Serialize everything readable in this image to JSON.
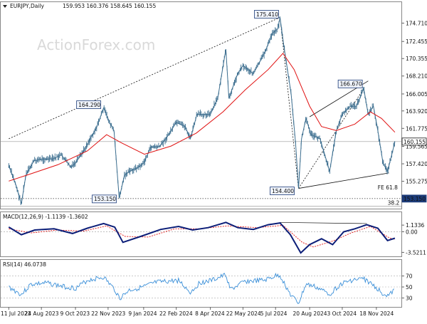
{
  "header": {
    "symbol": "EURJPY,Daily",
    "ohlc": "159.953 160.376 158.645 160.155"
  },
  "watermark": "ActionForex.com",
  "colors": {
    "price": "#3c6e8f",
    "ma": "#e01010",
    "macd": "#0c1e78",
    "signal": "#e01010",
    "rsi": "#3a8fd8",
    "grid": "#9a9a9a",
    "label_bg": "#1c3b78"
  },
  "chart_data": [
    {
      "type": "line",
      "panel": "price",
      "ylim": [
        152.0,
        177.2
      ],
      "yticks": [
        {
          "v": 174.71,
          "label": "174.710"
        },
        {
          "v": 172.455,
          "label": "172.455"
        },
        {
          "v": 170.355,
          "label": "170.355"
        },
        {
          "v": 168.21,
          "label": "168.210"
        },
        {
          "v": 166.005,
          "label": "166.005"
        },
        {
          "v": 163.92,
          "label": "163.920"
        },
        {
          "v": 161.775,
          "label": "161.775"
        },
        {
          "v": 159.565,
          "label": "159.565"
        },
        {
          "v": 157.42,
          "label": "157.420"
        },
        {
          "v": 155.275,
          "label": "155.275"
        }
      ],
      "last_price": {
        "v": 160.155,
        "label": "160.155"
      },
      "level_label": {
        "v": 153.15,
        "label": "153.150"
      },
      "dates": [
        "11 Jul 2023",
        "24 Aug 2023",
        "9 Oct 2023",
        "22 Nov 2023",
        "9 Jan 2024",
        "22 Feb 2024",
        "8 Apr 2024",
        "22 May 2024",
        "5 Jul 2024",
        "20 Aug 2024",
        "3 Oct 2024",
        "18 Nov 2024"
      ],
      "series": [
        {
          "role": "price",
          "points": [
            [
              "2023-07-11",
              157.2
            ],
            [
              "2023-07-20",
              155.0
            ],
            [
              "2023-07-28",
              152.5
            ],
            [
              "2023-08-03",
              156.0
            ],
            [
              "2023-08-14",
              157.8
            ],
            [
              "2023-08-24",
              158.0
            ],
            [
              "2023-09-08",
              158.0
            ],
            [
              "2023-09-20",
              158.5
            ],
            [
              "2023-10-03",
              157.0
            ],
            [
              "2023-10-09",
              157.5
            ],
            [
              "2023-10-20",
              159.0
            ],
            [
              "2023-11-01",
              161.0
            ],
            [
              "2023-11-07",
              162.0
            ],
            [
              "2023-11-16",
              164.29
            ],
            [
              "2023-11-24",
              162.5
            ],
            [
              "2023-11-30",
              161.5
            ],
            [
              "2023-12-07",
              153.16
            ],
            [
              "2023-12-14",
              156.0
            ],
            [
              "2023-12-21",
              156.5
            ],
            [
              "2024-01-02",
              157.0
            ],
            [
              "2024-01-09",
              157.5
            ],
            [
              "2024-01-19",
              159.5
            ],
            [
              "2024-01-30",
              159.5
            ],
            [
              "2024-02-08",
              160.5
            ],
            [
              "2024-02-22",
              162.5
            ],
            [
              "2024-03-05",
              162.0
            ],
            [
              "2024-03-12",
              160.5
            ],
            [
              "2024-03-21",
              163.5
            ],
            [
              "2024-04-08",
              163.5
            ],
            [
              "2024-04-18",
              165.5
            ],
            [
              "2024-04-29",
              171.5
            ],
            [
              "2024-05-03",
              165.5
            ],
            [
              "2024-05-15",
              168.5
            ],
            [
              "2024-05-22",
              169.5
            ],
            [
              "2024-06-05",
              168.5
            ],
            [
              "2024-06-20",
              171.0
            ],
            [
              "2024-07-01",
              173.5
            ],
            [
              "2024-07-08",
              174.0
            ],
            [
              "2024-07-11",
              175.41
            ],
            [
              "2024-07-16",
              172.0
            ],
            [
              "2024-07-26",
              166.0
            ],
            [
              "2024-08-01",
              160.0
            ],
            [
              "2024-08-05",
              154.4
            ],
            [
              "2024-08-09",
              160.5
            ],
            [
              "2024-08-15",
              163.0
            ],
            [
              "2024-08-22",
              161.0
            ],
            [
              "2024-09-03",
              160.5
            ],
            [
              "2024-09-16",
              156.5
            ],
            [
              "2024-09-25",
              161.5
            ],
            [
              "2024-10-03",
              163.5
            ],
            [
              "2024-10-14",
              164.5
            ],
            [
              "2024-10-22",
              164.5
            ],
            [
              "2024-11-01",
              166.67
            ],
            [
              "2024-11-07",
              163.5
            ],
            [
              "2024-11-14",
              164.5
            ],
            [
              "2024-11-20",
              161.5
            ],
            [
              "2024-11-27",
              157.5
            ],
            [
              "2024-12-03",
              156.5
            ],
            [
              "2024-12-10",
              159.0
            ],
            [
              "2024-12-13",
              160.155
            ]
          ]
        },
        {
          "role": "moving_average",
          "points": [
            [
              "2023-07-11",
              155.3
            ],
            [
              "2023-08-10",
              156.2
            ],
            [
              "2023-09-15",
              157.3
            ],
            [
              "2023-10-25",
              159.0
            ],
            [
              "2023-11-20",
              161.0
            ],
            [
              "2023-12-10",
              160.0
            ],
            [
              "2024-01-10",
              158.6
            ],
            [
              "2024-02-15",
              159.6
            ],
            [
              "2024-03-20",
              161.2
            ],
            [
              "2024-04-25",
              163.8
            ],
            [
              "2024-05-25",
              166.5
            ],
            [
              "2024-06-25",
              169.0
            ],
            [
              "2024-07-15",
              171.0
            ],
            [
              "2024-07-30",
              169.0
            ],
            [
              "2024-08-20",
              164.5
            ],
            [
              "2024-09-05",
              162.0
            ],
            [
              "2024-09-25",
              161.5
            ],
            [
              "2024-10-20",
              162.3
            ],
            [
              "2024-11-10",
              163.8
            ],
            [
              "2024-11-25",
              163.0
            ],
            [
              "2024-12-13",
              161.3
            ]
          ]
        }
      ],
      "annotations": [
        {
          "label": "175.410",
          "date": "2024-07-11",
          "v": 175.41
        },
        {
          "label": "164.290",
          "date": "2023-11-16",
          "v": 164.29
        },
        {
          "label": "166.670",
          "date": "2024-11-01",
          "v": 166.67
        },
        {
          "label": "154.400",
          "date": "2024-08-05",
          "v": 154.4
        },
        {
          "label": "153.150",
          "date": "2023-12-07",
          "v": 153.15
        },
        {
          "label": "FE 61.8",
          "v": 154.1
        },
        {
          "label": "38.2",
          "v": 152.2
        }
      ],
      "trendlines": [
        {
          "from": [
            "2023-07-11",
            160.5
          ],
          "to": [
            "2024-07-11",
            175.41
          ]
        },
        {
          "from": [
            "2024-07-11",
            175.41
          ],
          "to": [
            "2024-08-05",
            154.4
          ]
        },
        {
          "from": [
            "2024-08-05",
            154.4
          ],
          "to": [
            "2024-11-01",
            166.67
          ]
        },
        {
          "from": [
            "2024-08-05",
            154.4
          ],
          "to": [
            "2024-12-05",
            156.3
          ]
        },
        {
          "from": [
            "2024-08-20",
            163.2
          ],
          "to": [
            "2024-11-07",
            167.6
          ]
        }
      ],
      "hlines": [
        {
          "v": 160.155,
          "style": "solid"
        },
        {
          "v": 153.15,
          "style": "dotted"
        },
        {
          "v": 152.2,
          "style": "solid"
        }
      ]
    },
    {
      "type": "line",
      "panel": "macd",
      "label": "MACD(12,26,9) -1.1139 -1.3602",
      "ylim": [
        -4.2,
        2.0
      ],
      "yticks": [
        {
          "v": 1.1336,
          "label": "1.1336"
        },
        {
          "v": 0.0,
          "label": "0.00"
        },
        {
          "v": -3.5211,
          "label": "-3.5211"
        }
      ],
      "series": [
        {
          "role": "macd",
          "points": [
            [
              "2023-07-11",
              0.8
            ],
            [
              "2023-07-28",
              -0.5
            ],
            [
              "2023-08-15",
              0.3
            ],
            [
              "2023-09-10",
              0.5
            ],
            [
              "2023-10-05",
              -0.3
            ],
            [
              "2023-10-25",
              0.6
            ],
            [
              "2023-11-16",
              1.4
            ],
            [
              "2023-12-01",
              0.8
            ],
            [
              "2023-12-12",
              -1.8
            ],
            [
              "2024-01-05",
              -0.8
            ],
            [
              "2024-02-01",
              0.4
            ],
            [
              "2024-02-25",
              0.9
            ],
            [
              "2024-03-15",
              0.3
            ],
            [
              "2024-04-05",
              0.7
            ],
            [
              "2024-04-29",
              1.6
            ],
            [
              "2024-05-15",
              0.7
            ],
            [
              "2024-06-05",
              0.4
            ],
            [
              "2024-06-25",
              1.2
            ],
            [
              "2024-07-11",
              1.5
            ],
            [
              "2024-07-25",
              -0.5
            ],
            [
              "2024-08-08",
              -3.6
            ],
            [
              "2024-08-20",
              -2.2
            ],
            [
              "2024-09-05",
              -1.2
            ],
            [
              "2024-09-20",
              -2.2
            ],
            [
              "2024-10-05",
              0.0
            ],
            [
              "2024-10-20",
              0.5
            ],
            [
              "2024-11-05",
              1.2
            ],
            [
              "2024-11-20",
              0.6
            ],
            [
              "2024-12-03",
              -1.5
            ],
            [
              "2024-12-13",
              -1.1
            ]
          ]
        },
        {
          "role": "signal",
          "points": [
            [
              "2023-07-11",
              0.5
            ],
            [
              "2023-08-10",
              -0.2
            ],
            [
              "2023-09-15",
              0.3
            ],
            [
              "2023-10-20",
              0.1
            ],
            [
              "2023-11-20",
              1.0
            ],
            [
              "2023-12-15",
              -0.8
            ],
            [
              "2024-01-15",
              -0.9
            ],
            [
              "2024-02-20",
              0.5
            ],
            [
              "2024-03-25",
              0.5
            ],
            [
              "2024-05-01",
              1.0
            ],
            [
              "2024-06-10",
              0.7
            ],
            [
              "2024-07-15",
              1.1
            ],
            [
              "2024-08-10",
              -1.8
            ],
            [
              "2024-08-25",
              -2.6
            ],
            [
              "2024-09-20",
              -1.6
            ],
            [
              "2024-10-15",
              -0.2
            ],
            [
              "2024-11-10",
              0.9
            ],
            [
              "2024-12-05",
              -1.0
            ],
            [
              "2024-12-13",
              -1.36
            ]
          ]
        }
      ],
      "trendlines": [
        {
          "from": [
            "2024-07-11",
            1.6
          ],
          "to": [
            "2024-11-05",
            1.4
          ]
        }
      ]
    },
    {
      "type": "line",
      "panel": "rsi",
      "label": "RSI(14) 46.0738",
      "ylim": [
        15,
        85
      ],
      "yticks": [
        {
          "v": 70,
          "label": "70"
        },
        {
          "v": 50,
          "label": "50"
        },
        {
          "v": 30,
          "label": "30"
        }
      ],
      "series": [
        {
          "role": "rsi",
          "points": [
            [
              "2023-07-11",
              50
            ],
            [
              "2023-07-28",
              36
            ],
            [
              "2023-08-10",
              55
            ],
            [
              "2023-09-01",
              57
            ],
            [
              "2023-09-25",
              50
            ],
            [
              "2023-10-10",
              48
            ],
            [
              "2023-10-25",
              62
            ],
            [
              "2023-11-16",
              68
            ],
            [
              "2023-12-01",
              45
            ],
            [
              "2023-12-08",
              29
            ],
            [
              "2023-12-20",
              44
            ],
            [
              "2024-01-09",
              50
            ],
            [
              "2024-01-25",
              58
            ],
            [
              "2024-02-10",
              60
            ],
            [
              "2024-02-25",
              62
            ],
            [
              "2024-03-12",
              40
            ],
            [
              "2024-03-25",
              58
            ],
            [
              "2024-04-10",
              62
            ],
            [
              "2024-04-29",
              72
            ],
            [
              "2024-05-05",
              45
            ],
            [
              "2024-05-25",
              60
            ],
            [
              "2024-06-20",
              62
            ],
            [
              "2024-07-05",
              70
            ],
            [
              "2024-07-11",
              71
            ],
            [
              "2024-07-25",
              36
            ],
            [
              "2024-08-05",
              20
            ],
            [
              "2024-08-15",
              55
            ],
            [
              "2024-08-28",
              50
            ],
            [
              "2024-09-16",
              37
            ],
            [
              "2024-10-01",
              55
            ],
            [
              "2024-10-15",
              62
            ],
            [
              "2024-11-01",
              65
            ],
            [
              "2024-11-15",
              52
            ],
            [
              "2024-11-27",
              38
            ],
            [
              "2024-12-05",
              34
            ],
            [
              "2024-12-13",
              46
            ]
          ]
        }
      ]
    }
  ]
}
